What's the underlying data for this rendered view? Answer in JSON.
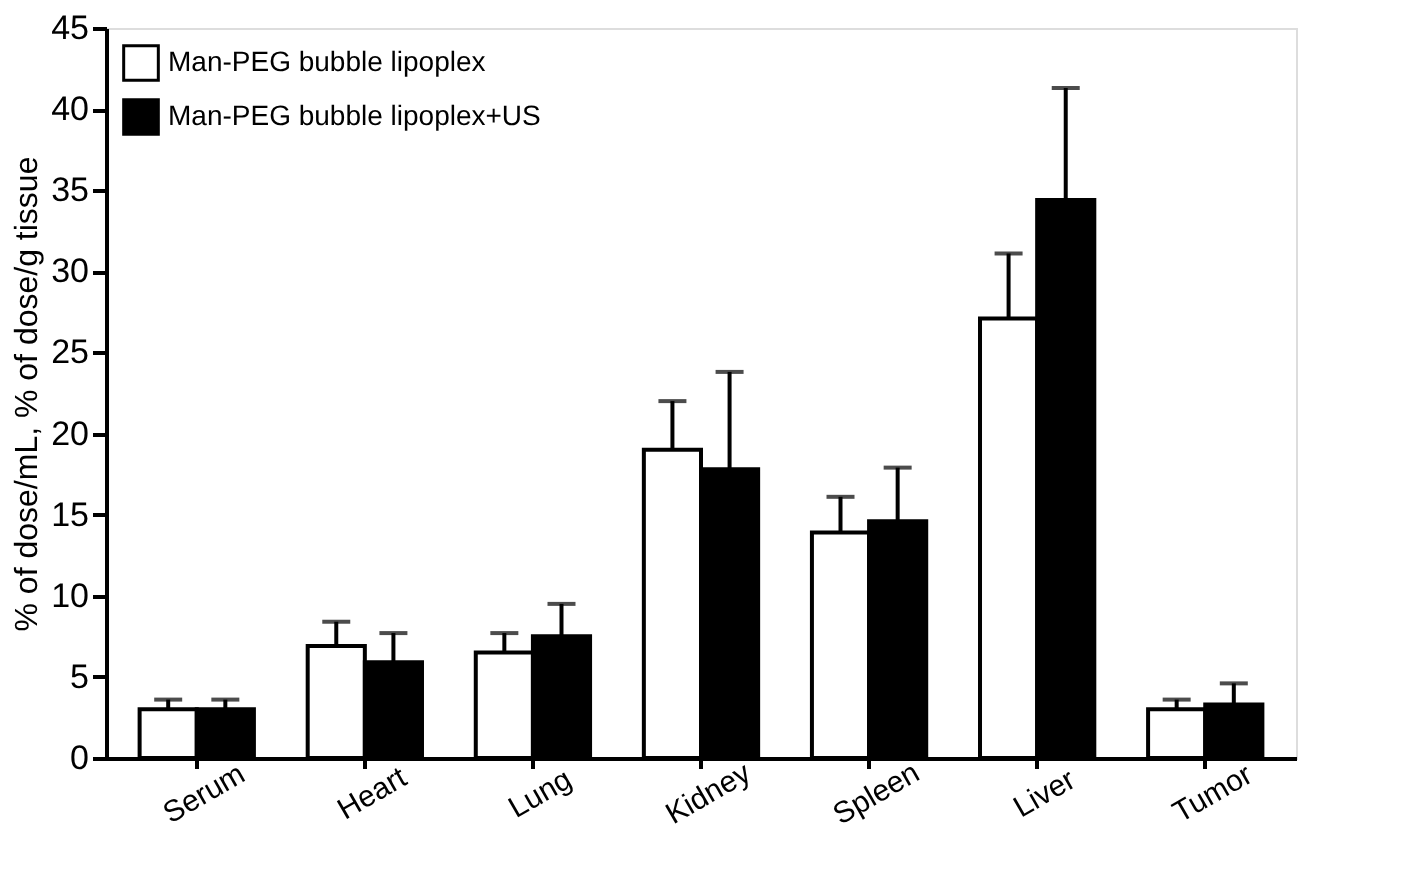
{
  "chart_data": {
    "type": "bar",
    "ylabel": "% of dose/mL, % of dose/g tissue",
    "categories": [
      "Serum",
      "Heart",
      "Lung",
      "Kidney",
      "Spleen",
      "Liver",
      "Tumor"
    ],
    "series": [
      {
        "name": "Man-PEG bubble lipoplex",
        "color": "#ffffff",
        "values": [
          3.0,
          6.9,
          6.5,
          19.0,
          13.9,
          27.1,
          3.0
        ],
        "errors": [
          [
            3.0,
            3.6
          ],
          [
            6.9,
            8.4
          ],
          [
            6.5,
            7.7
          ],
          [
            19.0,
            22.0
          ],
          [
            13.9,
            16.1
          ],
          [
            27.1,
            31.1
          ],
          [
            3.0,
            3.6
          ]
        ]
      },
      {
        "name": "Man-PEG bubble lipoplex+US",
        "color": "#000000",
        "values": [
          3.0,
          5.9,
          7.5,
          17.8,
          14.6,
          34.4,
          3.3
        ],
        "errors": [
          [
            3.0,
            3.6
          ],
          [
            5.9,
            7.7
          ],
          [
            7.5,
            9.5
          ],
          [
            17.8,
            23.8
          ],
          [
            14.6,
            17.9
          ],
          [
            34.4,
            41.3
          ],
          [
            3.3,
            4.6
          ]
        ]
      }
    ],
    "ylim": [
      0,
      45
    ],
    "yticks": [
      0,
      5,
      10,
      15,
      20,
      25,
      30,
      35,
      40,
      45
    ],
    "grid": false,
    "legend": "top left"
  }
}
